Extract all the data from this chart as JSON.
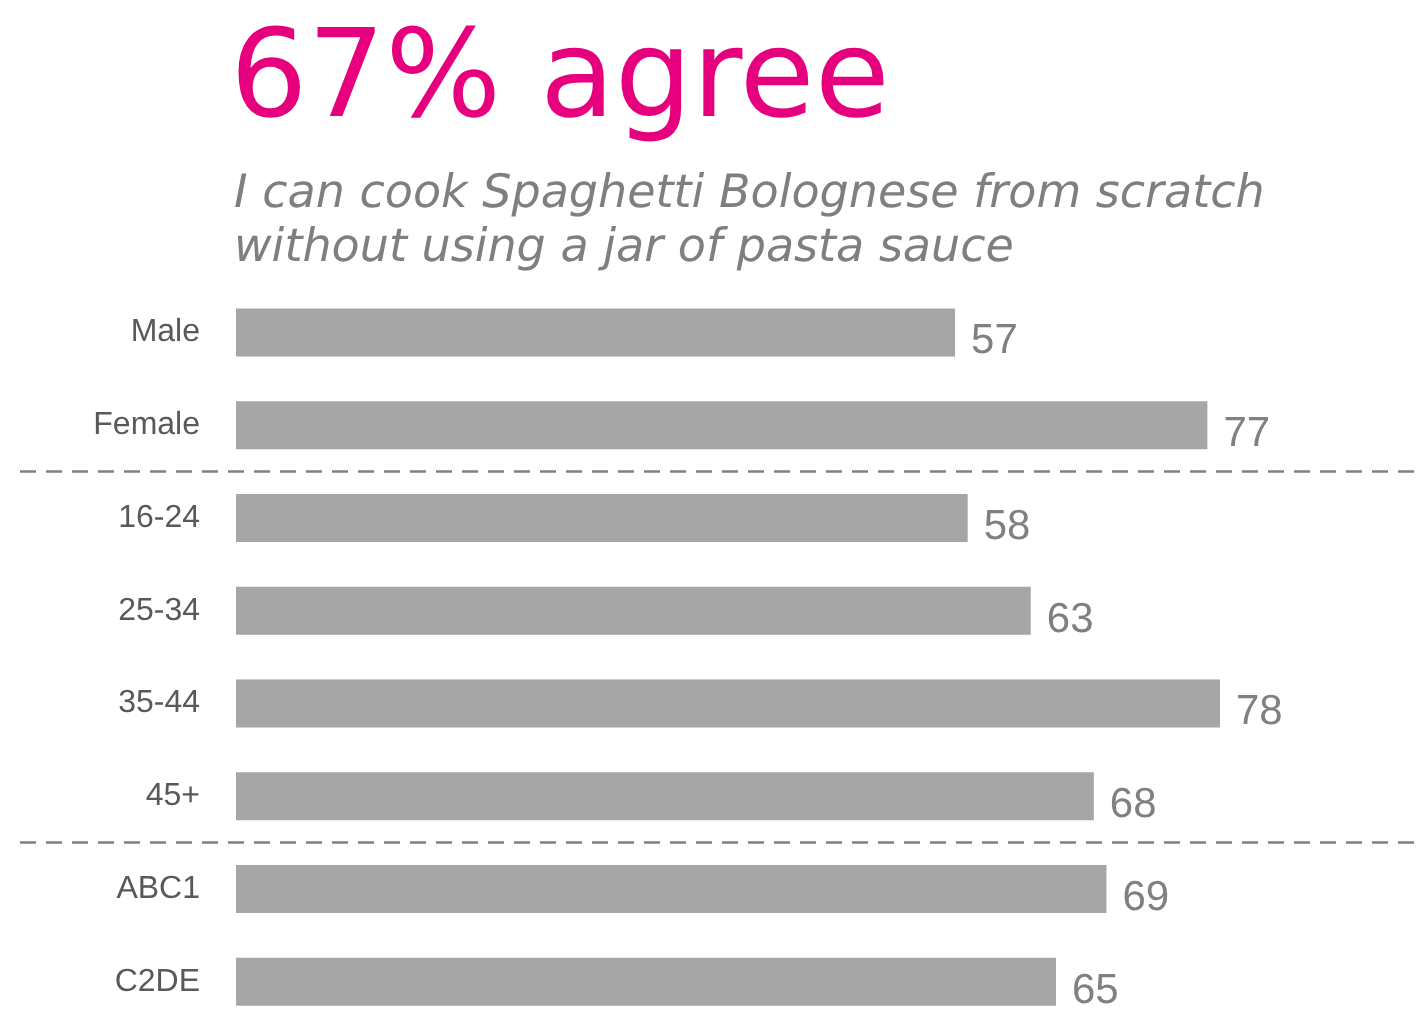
{
  "chart_data": {
    "type": "bar",
    "orientation": "horizontal",
    "title": "67% agree",
    "subtitle": "I can cook Spaghetti Bolognese from scratch\nwithout using a jar of pasta sauce",
    "categories": [
      "Male",
      "Female",
      "16-24",
      "25-34",
      "35-44",
      "45+",
      "ABC1",
      "C2DE"
    ],
    "values": [
      57,
      77,
      58,
      63,
      78,
      68,
      69,
      65
    ],
    "color": "#a6a6a6",
    "data_labels": true
  }
}
